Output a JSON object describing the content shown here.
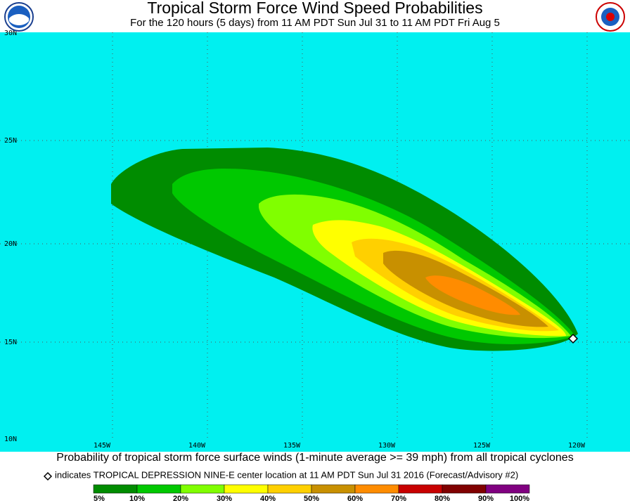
{
  "header": {
    "title": "Tropical Storm Force Wind Speed Probabilities",
    "subtitle": "For the 120 hours (5 days) from 11 AM PDT Sun Jul 31 to 11 AM PDT Fri Aug 5"
  },
  "map": {
    "latitude_labels": [
      "30N",
      "25N",
      "20N",
      "15N",
      "10N"
    ],
    "longitude_labels": [
      "145W",
      "140W",
      "135W",
      "130W",
      "125W",
      "120W"
    ]
  },
  "caption": "Probability of tropical storm force surface winds (1-minute average >= 39 mph) from all tropical cyclones",
  "note": "indicates TROPICAL DEPRESSION NINE-E center location at 11 AM PDT Sun Jul 31 2016 (Forecast/Advisory #2)",
  "legend": {
    "labels": [
      "5%",
      "10%",
      "20%",
      "30%",
      "40%",
      "50%",
      "60%",
      "70%",
      "80%",
      "90%",
      "100%"
    ],
    "colors": [
      "#008c00",
      "#00c800",
      "#80ff00",
      "#ffff00",
      "#ffd000",
      "#c89000",
      "#ff8c00",
      "#c80000",
      "#800000",
      "#800080"
    ]
  }
}
